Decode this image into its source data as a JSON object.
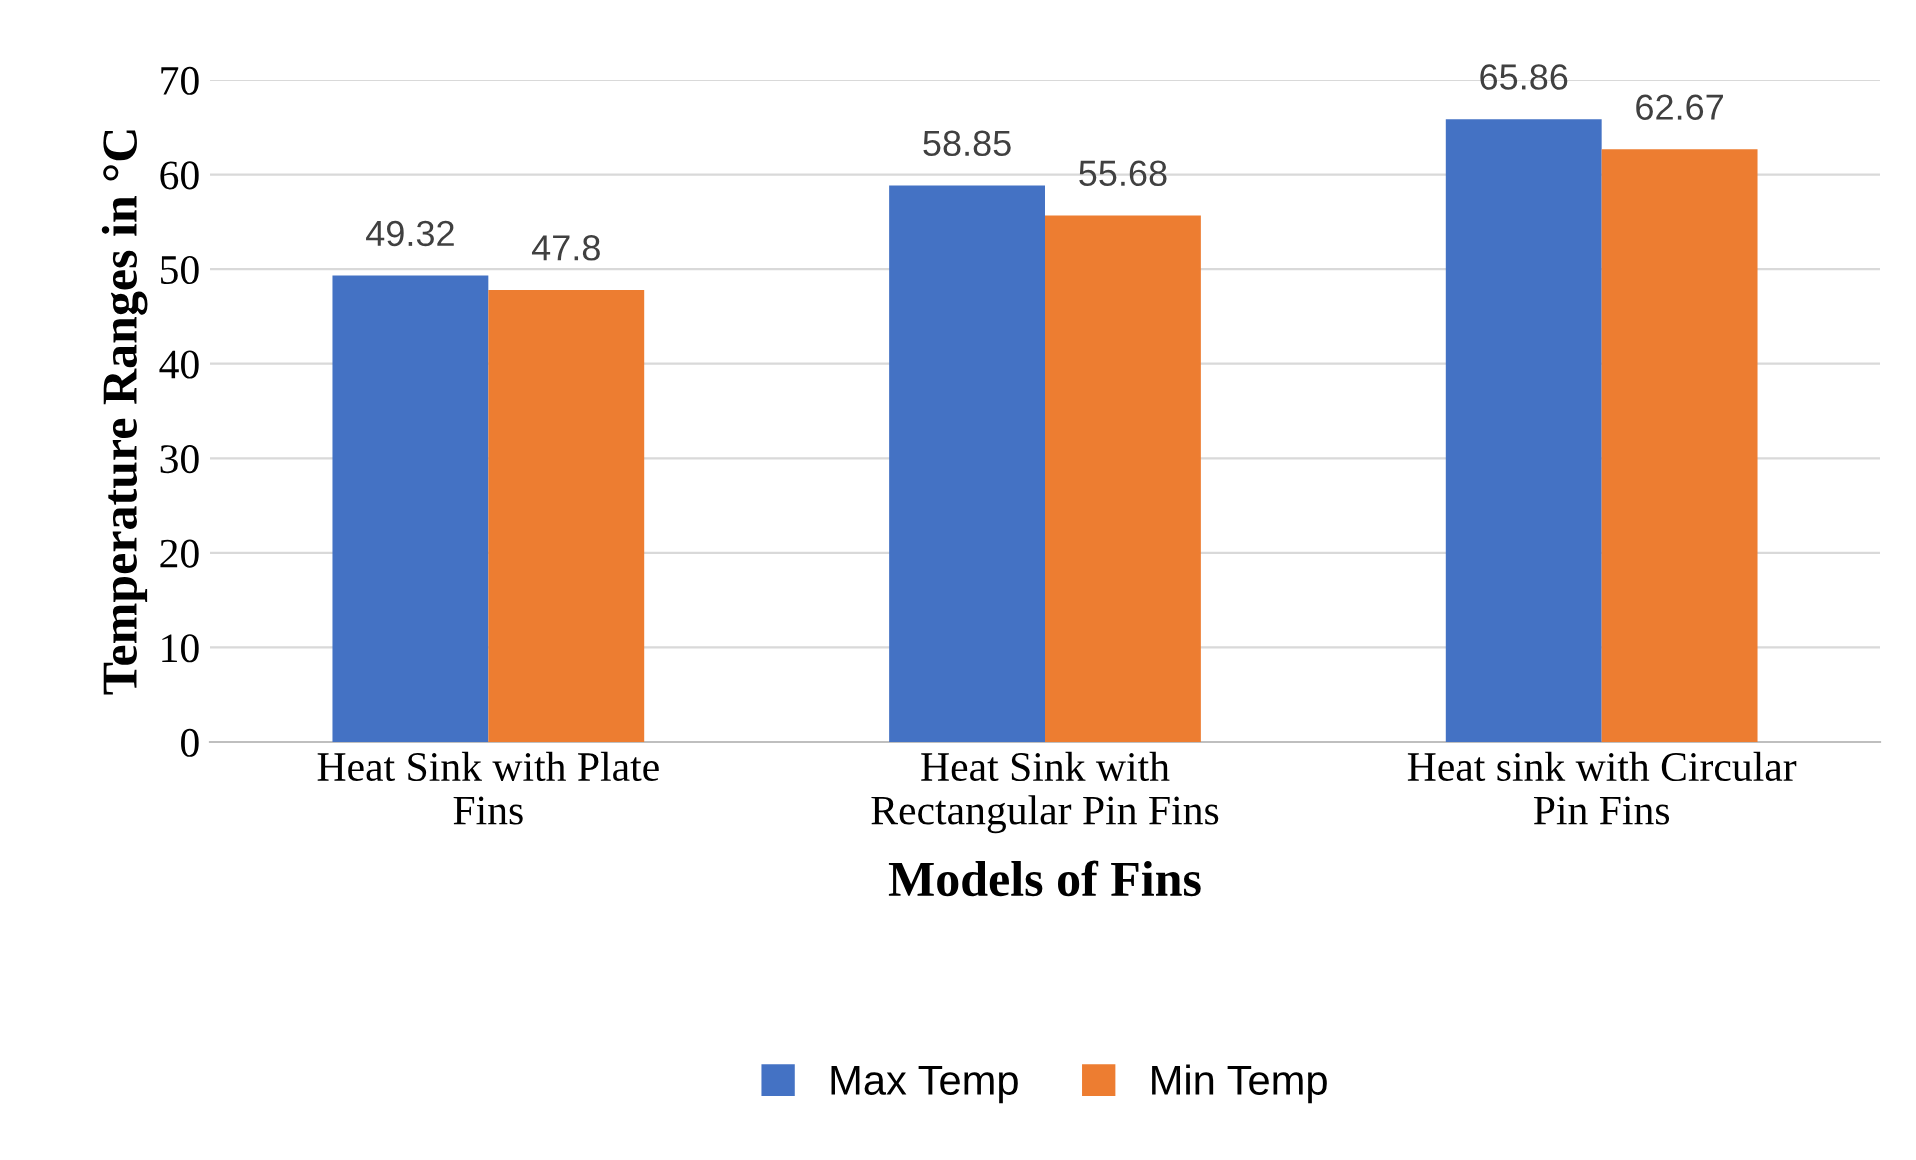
{
  "chart_data": {
    "type": "bar",
    "xlabel": "Models of Fins",
    "ylabel": "Temperature Ranges in °C",
    "categories": [
      "Heat Sink with Plate\nFins",
      "Heat Sink with\nRectangular Pin Fins",
      "Heat sink with Circular\nPin Fins"
    ],
    "series": [
      {
        "name": "Max Temp",
        "color": "#4472c4",
        "values": [
          49.32,
          58.85,
          65.86
        ]
      },
      {
        "name": "Min Temp",
        "color": "#ed7d31",
        "values": [
          47.8,
          55.68,
          62.67
        ]
      }
    ],
    "ylim": [
      0,
      70
    ],
    "yticks": [
      0,
      10,
      20,
      30,
      40,
      50,
      60,
      70
    ],
    "grid": "y",
    "legend": "bottom",
    "data_labels": true
  }
}
